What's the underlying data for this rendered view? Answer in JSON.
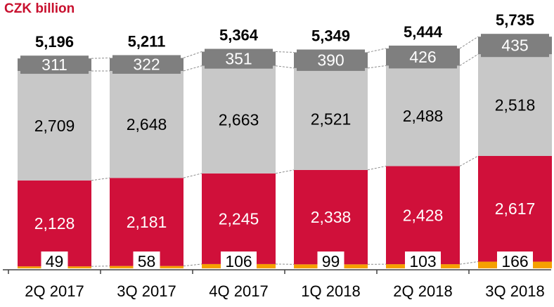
{
  "unit_label": "CZK billion",
  "chart_data": {
    "type": "bar",
    "stacked": true,
    "categories": [
      "2Q 2017",
      "3Q 2017",
      "4Q 2017",
      "1Q 2018",
      "2Q 2018",
      "3Q 2018"
    ],
    "totals": [
      5196,
      5211,
      5364,
      5349,
      5444,
      5735
    ],
    "totals_text": [
      "5,196",
      "5,211",
      "5,364",
      "5,349",
      "5,444",
      "5,735"
    ],
    "series": [
      {
        "values": [
          49,
          58,
          106,
          99,
          103,
          166
        ],
        "labels": [
          "49",
          "58",
          "106",
          "99",
          "103",
          "166"
        ],
        "color": "#f5a000",
        "label_color": "#000000",
        "label_box": true
      },
      {
        "values": [
          2128,
          2181,
          2245,
          2338,
          2428,
          2617
        ],
        "labels": [
          "2,128",
          "2,181",
          "2,245",
          "2,338",
          "2,428",
          "2,617"
        ],
        "color": "#d0103a",
        "label_color": "#ffffff",
        "label_box": false
      },
      {
        "values": [
          2709,
          2648,
          2663,
          2521,
          2488,
          2518
        ],
        "labels": [
          "2,709",
          "2,648",
          "2,663",
          "2,521",
          "2,488",
          "2,518"
        ],
        "color": "#c8c8c8",
        "label_color": "#000000",
        "label_box": false
      },
      {
        "values": [
          311,
          322,
          351,
          390,
          426,
          435
        ],
        "labels": [
          "311",
          "322",
          "351",
          "390",
          "426",
          "435"
        ],
        "color": "#7f7f7f",
        "label_color": "#ffffff",
        "label_box": false
      }
    ],
    "connector_lines": "dashed",
    "grid": false,
    "legend": "none"
  }
}
